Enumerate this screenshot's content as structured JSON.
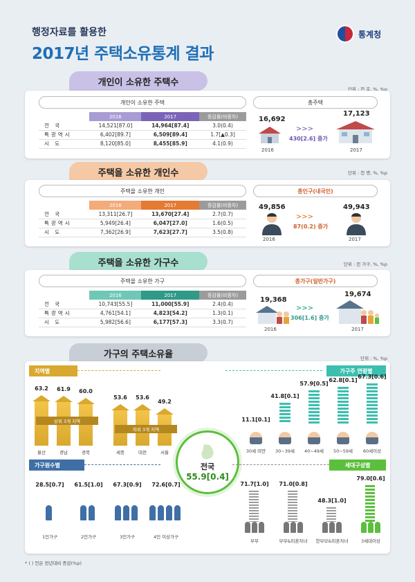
{
  "header": {
    "subtitle": "행정자료를 활용한",
    "title": "2017년 주택소유통계 결과",
    "logo": "통계청"
  },
  "s1": {
    "banner": "개인이 소유한 주택수",
    "unit": "단위 : 천 호, %, %p",
    "pill": "개인이 소유한 주택",
    "cols": [
      "2016",
      "2017",
      "증감률(비중차)"
    ],
    "rows": [
      {
        "label": "전 국",
        "v16": "14,521[87.0]",
        "v17": "14,964[87.4]",
        "chg": "3.0(0.4)"
      },
      {
        "label": "특광역시",
        "v16": "6,402[89.7]",
        "v17": "6,509[89.4]",
        "chg": "1.7[▲0.3]"
      },
      {
        "label": "시 도",
        "v16": "8,120[85.0]",
        "v17": "8,455[85.9]",
        "chg": "4.1(0.9)"
      }
    ],
    "right_pill": "총주택",
    "left_val": "16,692",
    "left_year": "2016",
    "right_val": "17,123",
    "right_year": "2017",
    "change": "430[2.6] 증가"
  },
  "s2": {
    "banner": "주택을 소유한 개인수",
    "unit": "단위 : 천 명, %, %p",
    "pill": "주택을 소유한 개인",
    "cols": [
      "2016",
      "2017",
      "증감률(비중차)"
    ],
    "rows": [
      {
        "label": "전 국",
        "v16": "13,311[26.7]",
        "v17": "13,670[27.4]",
        "chg": "2.7(0.7)"
      },
      {
        "label": "특광역시",
        "v16": "5,949[26.4]",
        "v17": "6,047[27.0]",
        "chg": "1.6(0.5)"
      },
      {
        "label": "시 도",
        "v16": "7,362[26.9]",
        "v17": "7,623[27.7]",
        "chg": "3.5(0.8)"
      }
    ],
    "right_pill": "총인구(내국인)",
    "left_val": "49,856",
    "left_year": "2016",
    "right_val": "49,943",
    "right_year": "2017",
    "change": "87(0.2) 증가"
  },
  "s3": {
    "banner": "주택을 소유한 가구수",
    "unit": "단위 : 천 가구, %, %p",
    "pill": "주택을 소유한 가구",
    "cols": [
      "2016",
      "2017",
      "증감률(비중차)"
    ],
    "rows": [
      {
        "label": "전 국",
        "v16": "10,743[55.5]",
        "v17": "11,000[55.9]",
        "chg": "2.4(0.4)"
      },
      {
        "label": "특광역시",
        "v16": "4,761[54.1]",
        "v17": "4,823[54.2]",
        "chg": "1.3(0.1)"
      },
      {
        "label": "시 도",
        "v16": "5,982[56.6]",
        "v17": "6,177[57.3]",
        "chg": "3.3(0.7)"
      }
    ],
    "right_pill": "총가구(일반가구)",
    "left_val": "19,368",
    "left_year": "2016",
    "right_val": "19,674",
    "right_year": "2017",
    "change": "306[1.6] 증가"
  },
  "s4": {
    "banner": "가구의 주택소유율",
    "unit": "단위 : %, %p",
    "region": {
      "title": "지역별",
      "top_label": "상위 3개 지역",
      "bottom_label": "하위 3개 지역",
      "items": [
        {
          "name": "울산",
          "value": "63.2"
        },
        {
          "name": "경남",
          "value": "61.9"
        },
        {
          "name": "경북",
          "value": "60.0"
        },
        {
          "name": "세종",
          "value": "53.6"
        },
        {
          "name": "대전",
          "value": "53.6"
        },
        {
          "name": "서울",
          "value": "49.2"
        }
      ]
    },
    "age": {
      "title": "가구주 연령별",
      "items": [
        {
          "name": "30세 미만",
          "value": "11.1[0.1]"
        },
        {
          "name": "30~39세",
          "value": "41.8[0.1]"
        },
        {
          "name": "40~49세",
          "value": "57.9[0.5]"
        },
        {
          "name": "50~59세",
          "value": "62.8[0.1]"
        },
        {
          "name": "60세이상",
          "value": "67.3[0.6]"
        }
      ]
    },
    "size": {
      "title": "가구원수별",
      "items": [
        {
          "name": "1인가구",
          "value": "28.5[0.7]"
        },
        {
          "name": "2인가구",
          "value": "61.5[1.0]"
        },
        {
          "name": "3인가구",
          "value": "67.3[0.9]"
        },
        {
          "name": "4인 이상가구",
          "value": "72.6[0.7]"
        }
      ]
    },
    "type": {
      "title": "세대구성별",
      "items": [
        {
          "name": "부부",
          "value": "71.7[1.0]"
        },
        {
          "name": "부부&미혼자녀",
          "value": "71.0[0.8]"
        },
        {
          "name": "한부모&미혼자녀",
          "value": "48.3[1.0]"
        },
        {
          "name": "3세대이상",
          "value": "79.0[0.6]"
        }
      ]
    },
    "center": {
      "label": "전국",
      "value": "55.9[0.4]"
    }
  },
  "footnote": "* ( ) 안은 전년대비 증감(%p)",
  "colors": {
    "s1": "#8e7cc3",
    "s2": "#e8894a",
    "s3": "#3fae9c",
    "gold": "#d9a82e",
    "teal": "#3bbfae",
    "gray": "#8a8a8a",
    "green": "#5bbf3c"
  }
}
